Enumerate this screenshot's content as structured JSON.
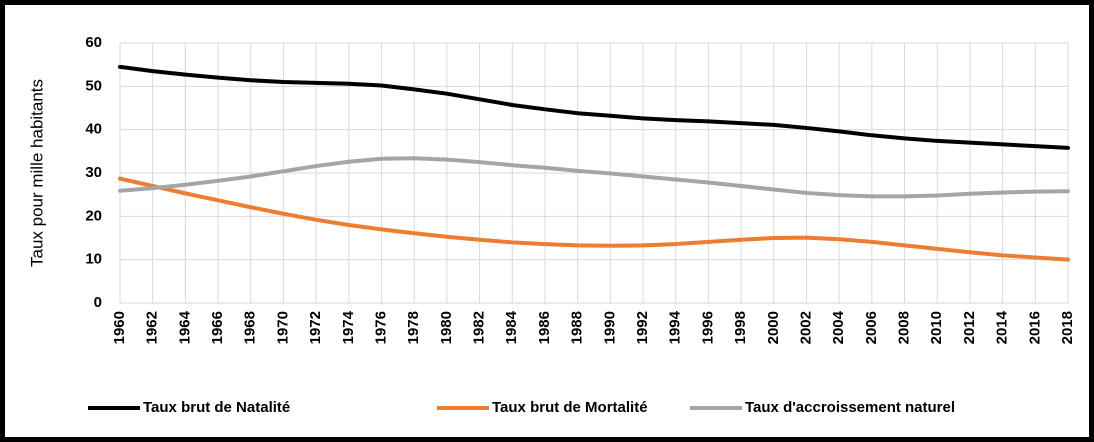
{
  "chart_data": {
    "type": "line",
    "y_label": "Taux pour mille habitants",
    "categories": [
      "1960",
      "1962",
      "1964",
      "1966",
      "1968",
      "1970",
      "1972",
      "1974",
      "1976",
      "1978",
      "1980",
      "1982",
      "1984",
      "1986",
      "1988",
      "1990",
      "1992",
      "1994",
      "1996",
      "1998",
      "2000",
      "2002",
      "2004",
      "2006",
      "2008",
      "2010",
      "2012",
      "2014",
      "2016",
      "2018"
    ],
    "series": [
      {
        "name": "Taux brut de Natalité",
        "color": "#000000",
        "values": [
          54.5,
          53.5,
          52.7,
          52,
          51.4,
          51,
          50.8,
          50.6,
          50.2,
          49.3,
          48.3,
          47,
          45.7,
          44.7,
          43.8,
          43.2,
          42.6,
          42.2,
          41.9,
          41.5,
          41.1,
          40.4,
          39.6,
          38.7,
          38,
          37.4,
          37,
          36.6,
          36.2,
          35.8
        ]
      },
      {
        "name": "Taux brut de Mortalité",
        "color": "#ed7d31",
        "values": [
          28.7,
          27,
          25.3,
          23.7,
          22.1,
          20.6,
          19.2,
          18,
          17,
          16.1,
          15.3,
          14.6,
          14,
          13.6,
          13.3,
          13.2,
          13.3,
          13.6,
          14.1,
          14.6,
          15,
          15.1,
          14.7,
          14.1,
          13.3,
          12.5,
          11.7,
          11,
          10.5,
          10
        ]
      },
      {
        "name": "Taux d'accroissement naturel",
        "color": "#a5a5a5",
        "values": [
          25.9,
          26.5,
          27.3,
          28.2,
          29.2,
          30.4,
          31.6,
          32.6,
          33.3,
          33.4,
          33.1,
          32.5,
          31.8,
          31.2,
          30.5,
          29.9,
          29.2,
          28.5,
          27.8,
          27,
          26.2,
          25.4,
          24.9,
          24.6,
          24.6,
          24.8,
          25.2,
          25.5,
          25.7,
          25.8
        ]
      }
    ],
    "ylim": [
      0,
      60
    ],
    "yticks": [
      0,
      10,
      20,
      30,
      40,
      50,
      60
    ],
    "grid": true,
    "legend": "bottom"
  }
}
